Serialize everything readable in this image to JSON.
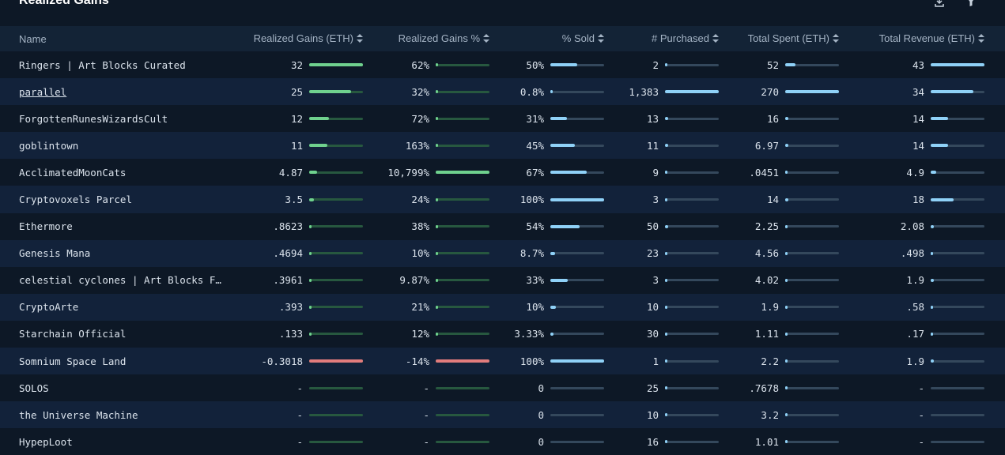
{
  "header": {
    "title": "Realized Gains",
    "icons": [
      "download-icon",
      "filter-icon"
    ]
  },
  "columns": [
    {
      "label": "Name"
    },
    {
      "label": "Realized Gains (ETH)"
    },
    {
      "label": "Realized Gains %"
    },
    {
      "label": "% Sold"
    },
    {
      "label": "# Purchased"
    },
    {
      "label": "Total Spent (ETH)"
    },
    {
      "label": "Total Revenue (ETH)"
    }
  ],
  "colors": {
    "gain_positive": "#6fd18e",
    "gain_negative": "#e27c7c",
    "neutral_bar": "#8fd1f7",
    "background": "#0d1826"
  },
  "rows": [
    {
      "name": "Ringers | Art Blocks Curated",
      "link": false,
      "gain": "32",
      "gain_frac": 1.0,
      "gain_sign": "pos",
      "gain_pct": "62%",
      "gain_pct_frac": 0.0,
      "gain_pct_sign": "pos",
      "sold": "50%",
      "sold_frac": 0.5,
      "purchased": "2",
      "purchased_frac": 0.0,
      "spent": "52",
      "spent_frac": 0.19,
      "revenue": "43",
      "revenue_frac": 1.0
    },
    {
      "name": "parallel",
      "link": true,
      "gain": "25",
      "gain_frac": 0.78,
      "gain_sign": "pos",
      "gain_pct": "32%",
      "gain_pct_frac": 0.0,
      "gain_pct_sign": "pos",
      "sold": "0.8%",
      "sold_frac": 0.0,
      "purchased": "1,383",
      "purchased_frac": 1.0,
      "spent": "270",
      "spent_frac": 1.0,
      "revenue": "34",
      "revenue_frac": 0.79
    },
    {
      "name": "ForgottenRunesWizardsCult",
      "link": false,
      "gain": "12",
      "gain_frac": 0.37,
      "gain_sign": "pos",
      "gain_pct": "72%",
      "gain_pct_frac": 0.0,
      "gain_pct_sign": "pos",
      "sold": "31%",
      "sold_frac": 0.31,
      "purchased": "13",
      "purchased_frac": 0.01,
      "spent": "16",
      "spent_frac": 0.06,
      "revenue": "14",
      "revenue_frac": 0.33
    },
    {
      "name": "goblintown",
      "link": false,
      "gain": "11",
      "gain_frac": 0.34,
      "gain_sign": "pos",
      "gain_pct": "163%",
      "gain_pct_frac": 0.0,
      "gain_pct_sign": "pos",
      "sold": "45%",
      "sold_frac": 0.45,
      "purchased": "11",
      "purchased_frac": 0.01,
      "spent": "6.97",
      "spent_frac": 0.03,
      "revenue": "14",
      "revenue_frac": 0.33
    },
    {
      "name": "AcclimatedMoonCats",
      "link": false,
      "gain": "4.87",
      "gain_frac": 0.15,
      "gain_sign": "pos",
      "gain_pct": "10,799%",
      "gain_pct_frac": 1.0,
      "gain_pct_sign": "pos",
      "sold": "67%",
      "sold_frac": 0.67,
      "purchased": "9",
      "purchased_frac": 0.0,
      "spent": ".0451",
      "spent_frac": 0.0,
      "revenue": "4.9",
      "revenue_frac": 0.11
    },
    {
      "name": "Cryptovoxels Parcel",
      "link": false,
      "gain": "3.5",
      "gain_frac": 0.09,
      "gain_sign": "pos",
      "gain_pct": "24%",
      "gain_pct_frac": 0.0,
      "gain_pct_sign": "pos",
      "sold": "100%",
      "sold_frac": 1.0,
      "purchased": "3",
      "purchased_frac": 0.0,
      "spent": "14",
      "spent_frac": 0.05,
      "revenue": "18",
      "revenue_frac": 0.42
    },
    {
      "name": "Ethermore",
      "link": false,
      "gain": ".8623",
      "gain_frac": 0.0,
      "gain_sign": "pos",
      "gain_pct": "38%",
      "gain_pct_frac": 0.0,
      "gain_pct_sign": "pos",
      "sold": "54%",
      "sold_frac": 0.54,
      "purchased": "50",
      "purchased_frac": 0.04,
      "spent": "2.25",
      "spent_frac": 0.0,
      "revenue": "2.08",
      "revenue_frac": 0.05
    },
    {
      "name": "Genesis Mana",
      "link": false,
      "gain": ".4694",
      "gain_frac": 0.0,
      "gain_sign": "pos",
      "gain_pct": "10%",
      "gain_pct_frac": 0.0,
      "gain_pct_sign": "pos",
      "sold": "8.7%",
      "sold_frac": 0.09,
      "purchased": "23",
      "purchased_frac": 0.0,
      "spent": "4.56",
      "spent_frac": 0.0,
      "revenue": ".498",
      "revenue_frac": 0.0
    },
    {
      "name": "celestial cyclones | Art Blocks F…",
      "link": false,
      "gain": ".3961",
      "gain_frac": 0.0,
      "gain_sign": "pos",
      "gain_pct": "9.87%",
      "gain_pct_frac": 0.0,
      "gain_pct_sign": "pos",
      "sold": "33%",
      "sold_frac": 0.33,
      "purchased": "3",
      "purchased_frac": 0.0,
      "spent": "4.02",
      "spent_frac": 0.0,
      "revenue": "1.9",
      "revenue_frac": 0.04
    },
    {
      "name": "CryptoArte",
      "link": false,
      "gain": ".393",
      "gain_frac": 0.0,
      "gain_sign": "pos",
      "gain_pct": "21%",
      "gain_pct_frac": 0.0,
      "gain_pct_sign": "pos",
      "sold": "10%",
      "sold_frac": 0.1,
      "purchased": "10",
      "purchased_frac": 0.0,
      "spent": "1.9",
      "spent_frac": 0.0,
      "revenue": ".58",
      "revenue_frac": 0.0
    },
    {
      "name": "Starchain Official",
      "link": false,
      "gain": ".133",
      "gain_frac": 0.0,
      "gain_sign": "pos",
      "gain_pct": "12%",
      "gain_pct_frac": 0.0,
      "gain_pct_sign": "pos",
      "sold": "3.33%",
      "sold_frac": 0.03,
      "purchased": "30",
      "purchased_frac": 0.0,
      "spent": "1.11",
      "spent_frac": 0.0,
      "revenue": ".17",
      "revenue_frac": 0.0
    },
    {
      "name": "Somnium Space Land",
      "link": false,
      "gain": "-0.3018",
      "gain_frac": 1.0,
      "gain_sign": "neg",
      "gain_pct": "-14%",
      "gain_pct_frac": 1.0,
      "gain_pct_sign": "neg",
      "sold": "100%",
      "sold_frac": 1.0,
      "purchased": "1",
      "purchased_frac": 0.0,
      "spent": "2.2",
      "spent_frac": 0.0,
      "revenue": "1.9",
      "revenue_frac": 0.04
    },
    {
      "name": "SOLOS",
      "link": false,
      "gain": "-",
      "gain_frac": 0.0,
      "gain_sign": "pos",
      "gain_pct": "-",
      "gain_pct_frac": 0.0,
      "gain_pct_sign": "pos",
      "sold": "0",
      "sold_frac": 0.0,
      "purchased": "25",
      "purchased_frac": 0.0,
      "spent": ".7678",
      "spent_frac": 0.0,
      "revenue": "-",
      "revenue_frac": 0.0
    },
    {
      "name": "the Universe Machine",
      "link": false,
      "gain": "-",
      "gain_frac": 0.0,
      "gain_sign": "pos",
      "gain_pct": "-",
      "gain_pct_frac": 0.0,
      "gain_pct_sign": "pos",
      "sold": "0",
      "sold_frac": 0.0,
      "purchased": "10",
      "purchased_frac": 0.0,
      "spent": "3.2",
      "spent_frac": 0.0,
      "revenue": "-",
      "revenue_frac": 0.0
    },
    {
      "name": "HypepLoot",
      "link": false,
      "gain": "-",
      "gain_frac": 0.0,
      "gain_sign": "pos",
      "gain_pct": "-",
      "gain_pct_frac": 0.0,
      "gain_pct_sign": "pos",
      "sold": "0",
      "sold_frac": 0.0,
      "purchased": "16",
      "purchased_frac": 0.0,
      "spent": "1.01",
      "spent_frac": 0.0,
      "revenue": "-",
      "revenue_frac": 0.0
    }
  ]
}
